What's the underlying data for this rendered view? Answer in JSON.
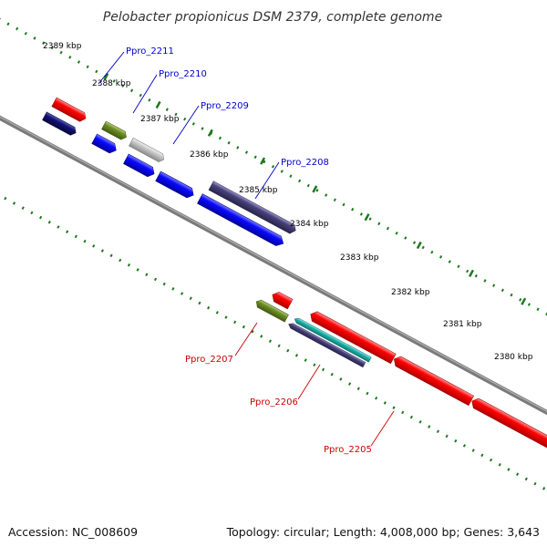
{
  "title": "Pelobacter propionicus DSM 2379, complete genome",
  "footer": {
    "accession": "Accession: NC_008609",
    "topology": "Topology: circular; Length: 4,008,000 bp; Genes: 3,643"
  },
  "colors": {
    "backbone": "#8a8a8a",
    "tick": "#1c7a1c",
    "forward_label": "#0000cc",
    "reverse_label": "#cc0000",
    "red": "#ff0000",
    "blue": "#0a0aff",
    "navy": "#11117a",
    "slate": "#46407a",
    "olive": "#6b8e23",
    "silver": "#c8c8c8",
    "cyan": "#20b2aa"
  },
  "kbp_labels": [
    "2389 kbp",
    "2388 kbp",
    "2387 kbp",
    "2386 kbp",
    "2385 kbp",
    "2384 kbp",
    "2383 kbp",
    "2382 kbp",
    "2381 kbp",
    "2380 kbp"
  ],
  "gene_labels": [
    "Ppro_2211",
    "Ppro_2210",
    "Ppro_2209",
    "Ppro_2208",
    "Ppro_2207",
    "Ppro_2206",
    "Ppro_2205"
  ],
  "features": [
    {
      "color": "red",
      "strand": "outer-rev"
    },
    {
      "color": "navy",
      "strand": "inner-rev"
    },
    {
      "color": "olive",
      "strand": "outer-fwd"
    },
    {
      "color": "blue",
      "strand": "fwd"
    },
    {
      "color": "silver",
      "strand": "outer-fwd"
    },
    {
      "color": "blue",
      "strand": "fwd"
    },
    {
      "color": "blue",
      "strand": "fwd"
    },
    {
      "color": "slate",
      "strand": "outer-fwd"
    },
    {
      "color": "blue",
      "strand": "fwd"
    },
    {
      "color": "red",
      "strand": "rev"
    },
    {
      "color": "olive",
      "strand": "rev"
    },
    {
      "color": "red",
      "strand": "rev"
    },
    {
      "color": "cyan",
      "strand": "rev"
    },
    {
      "color": "slate",
      "strand": "rev"
    },
    {
      "color": "red",
      "strand": "rev"
    },
    {
      "color": "red",
      "strand": "rev"
    }
  ]
}
